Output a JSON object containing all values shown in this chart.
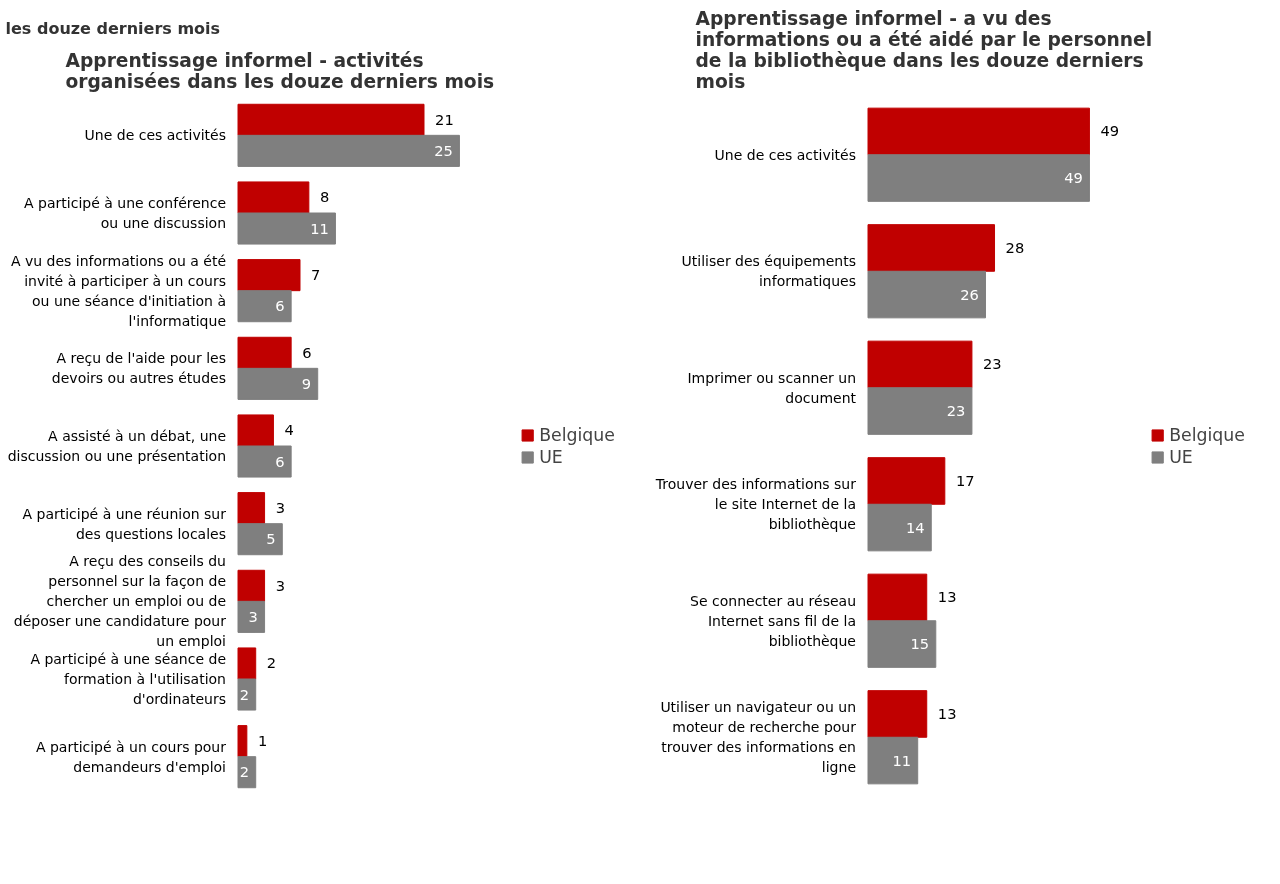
{
  "chart_data": [
    {
      "type": "bar",
      "orientation": "horizontal",
      "title": "Apprentissage informel - activités organisées dans les douze derniers mois",
      "annotations": [
        "les douze derniers mois"
      ],
      "categories": [
        "Une de ces activités",
        "A participé à une conférence ou une discussion",
        "A vu des informations ou a été invité à participer à un cours ou une séance d'initiation à l'informatique",
        "A reçu de l'aide pour les devoirs ou autres études",
        "A assisté à un débat, une discussion ou une présentation",
        "A participé à une réunion sur des questions locales",
        "A reçu des conseils du personnel sur la façon de chercher un emploi ou de déposer une candidature pour un emploi",
        "A participé à une séance de formation à l'utilisation d'ordinateurs",
        "A participé à un cours pour demandeurs d'emploi"
      ],
      "series": [
        {
          "name": "Belgique",
          "color": "#c00000",
          "values": [
            21,
            8,
            7,
            6,
            4,
            3,
            3,
            2,
            1
          ]
        },
        {
          "name": "UE",
          "color": "#7f7f7f",
          "values": [
            25,
            11,
            6,
            9,
            6,
            5,
            3,
            2,
            2
          ]
        }
      ],
      "data_labels": true,
      "legend": "right",
      "grid": false
    },
    {
      "type": "bar",
      "orientation": "horizontal",
      "title": "Apprentissage informel - a vu des informations ou a été aidé par le personnel de la bibliothèque dans les douze derniers mois",
      "categories": [
        "Une de ces activités",
        "Utiliser des équipements informatiques",
        "Imprimer ou scanner un document",
        "Trouver des informations sur le site Internet de la bibliothèque",
        "Se connecter au réseau Internet sans fil de la bibliothèque",
        "Utiliser un navigateur ou un moteur de recherche pour trouver des informations en ligne"
      ],
      "series": [
        {
          "name": "Belgique",
          "color": "#c00000",
          "values": [
            49,
            28,
            23,
            17,
            13,
            13
          ]
        },
        {
          "name": "UE",
          "color": "#7f7f7f",
          "values": [
            49,
            26,
            23,
            14,
            15,
            11
          ]
        }
      ],
      "data_labels": true,
      "legend": "right",
      "grid": false
    }
  ]
}
